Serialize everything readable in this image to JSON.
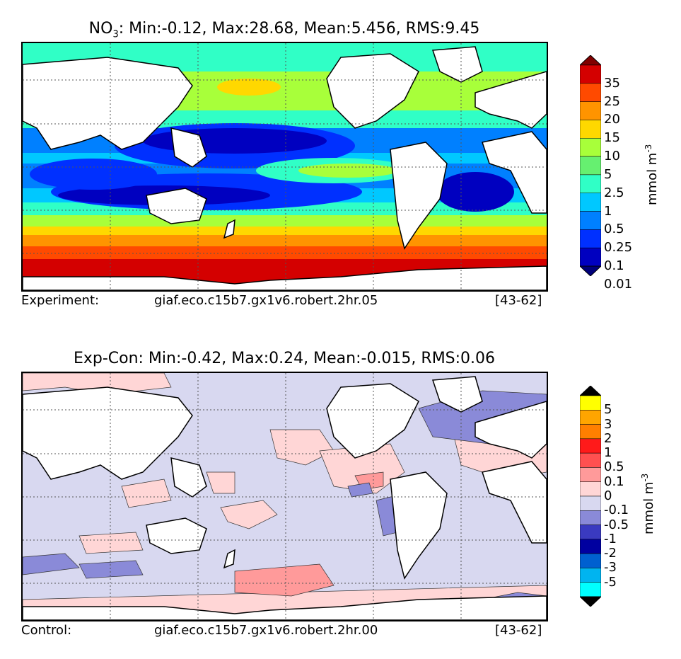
{
  "top_panel": {
    "title_var": "NO",
    "title_sub": "3",
    "title_rest": ": Min:-0.12, Max:28.68, Mean:5.456, RMS:9.45",
    "footer_label": "Experiment:",
    "footer_case": "giaf.eco.c15b7.gx1v6.robert.2hr.05",
    "footer_years": "[43-62]",
    "colorbar_unit": "mmol m",
    "colorbar_unit_exp": "-3",
    "colorbar_levels": [
      "35",
      "25",
      "20",
      "15",
      "10",
      "5",
      "2.5",
      "1",
      "0.5",
      "0.25",
      "0.1",
      "0.01"
    ],
    "colorbar_colors": [
      "#800000",
      "#d40000",
      "#ff4a00",
      "#ff9400",
      "#ffd800",
      "#a8ff3a",
      "#66f070",
      "#30ffc6",
      "#00c8ff",
      "#0080ff",
      "#0030ff",
      "#0000c0",
      "#00007a"
    ]
  },
  "bottom_panel": {
    "title": "Exp-Con: Min:-0.42, Max:0.24, Mean:-0.015, RMS:0.06",
    "footer_label": "Control:",
    "footer_case": "giaf.eco.c15b7.gx1v6.robert.2hr.00",
    "footer_years": "[43-62]",
    "colorbar_unit": "mmol m",
    "colorbar_unit_exp": "-3",
    "colorbar_levels": [
      "5",
      "3",
      "2",
      "1",
      "0.5",
      "0.1",
      "0",
      "-0.1",
      "-0.5",
      "-1",
      "-2",
      "-3",
      "-5"
    ],
    "colorbar_colors": [
      "#000000",
      "#ffff00",
      "#ffa500",
      "#ff7f00",
      "#ff1a1a",
      "#ff5050",
      "#ff9a9a",
      "#ffd6d6",
      "#d8d8f0",
      "#8a8ad8",
      "#3a3ac0",
      "#0000a0",
      "#0060d0",
      "#00b4f0",
      "#00ffff",
      "#000000"
    ]
  }
}
